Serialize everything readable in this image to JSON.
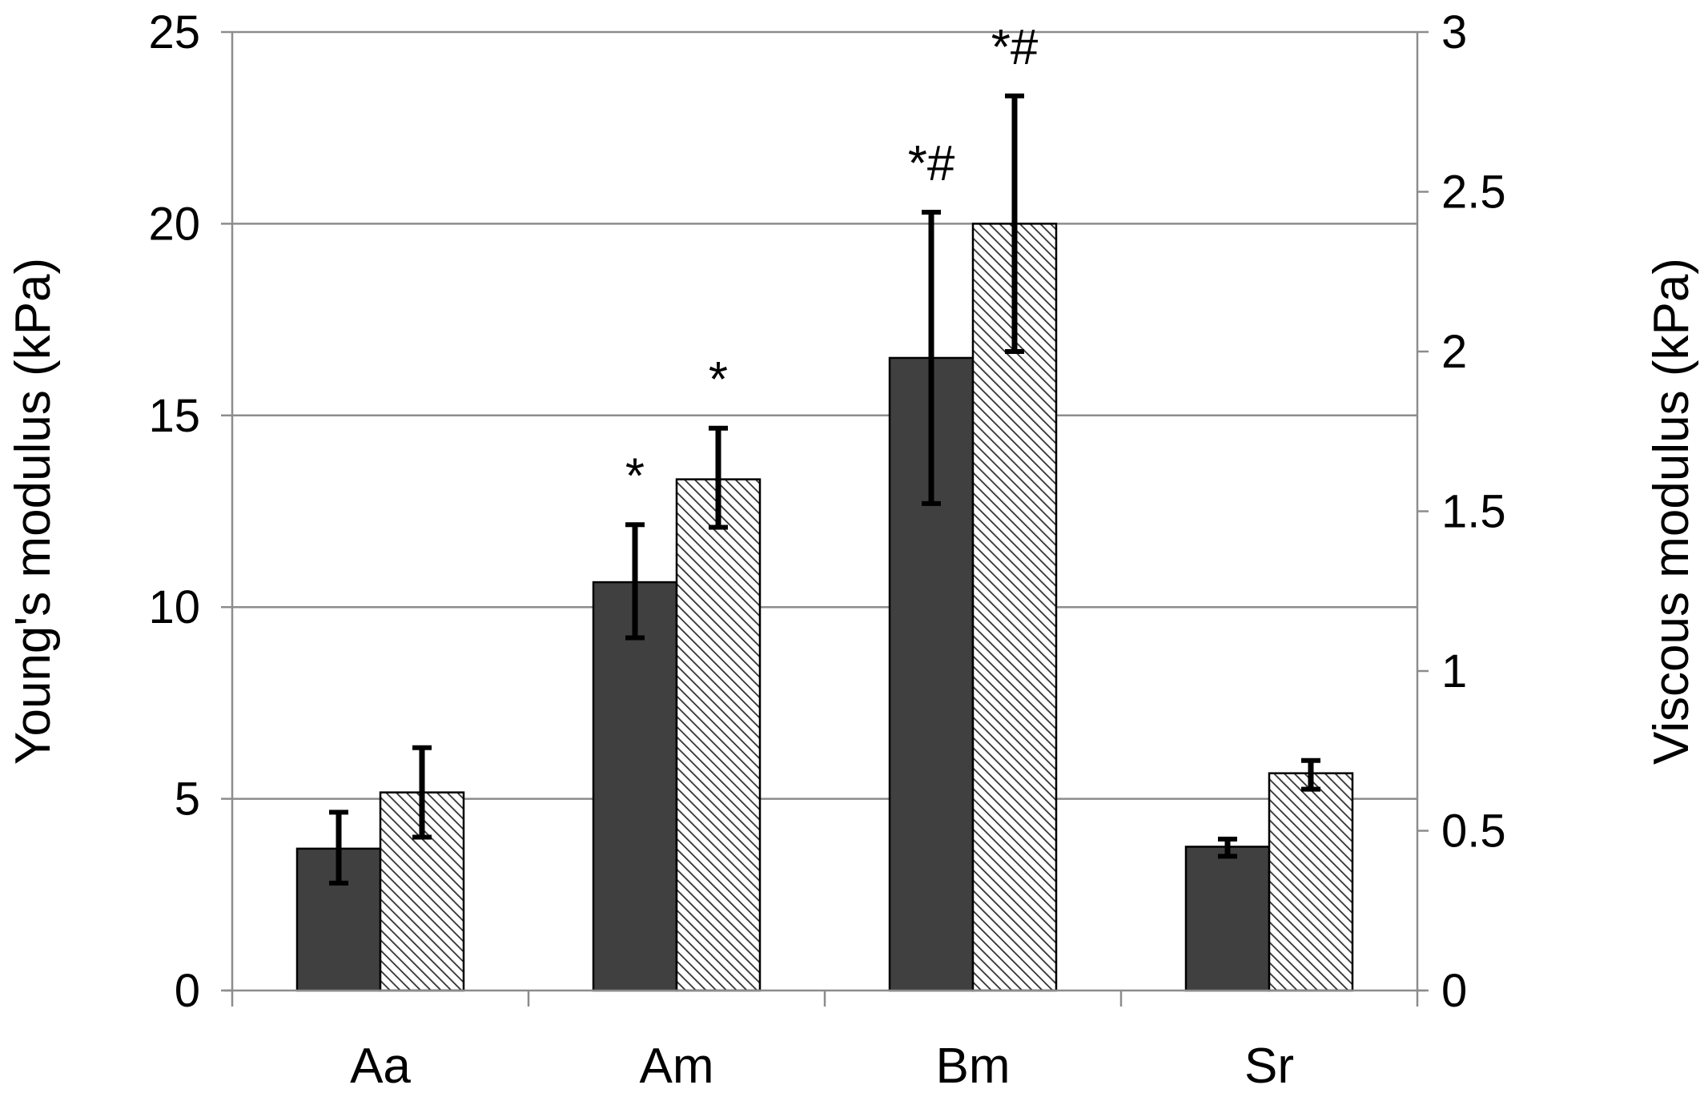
{
  "chart_data": {
    "type": "bar",
    "categories": [
      "Aa",
      "Am",
      "Bm",
      "Sr"
    ],
    "left_axis": {
      "label": "Young's modulus (kPa)",
      "ylim": [
        0,
        25
      ],
      "ticks": [
        "0",
        "5",
        "10",
        "15",
        "20",
        "25"
      ],
      "tick_values": [
        0,
        5,
        10,
        15,
        20,
        25
      ]
    },
    "right_axis": {
      "label": "Viscous modulus (kPa)",
      "ylim": [
        0,
        3
      ],
      "ticks": [
        "0",
        "0.5",
        "1",
        "1.5",
        "2",
        "2.5",
        "3"
      ],
      "tick_values": [
        0,
        0.5,
        1,
        1.5,
        2,
        2.5,
        3
      ]
    },
    "series": [
      {
        "axis": "left",
        "fill": "solid",
        "color": "#404040",
        "values": [
          3.7,
          10.65,
          16.5,
          3.75
        ],
        "error_low": [
          2.8,
          9.2,
          12.7,
          3.5
        ],
        "error_high": [
          4.65,
          12.15,
          20.3,
          3.95
        ],
        "annotations": [
          "",
          "*",
          "*#",
          ""
        ]
      },
      {
        "axis": "right",
        "fill": "hatched",
        "color": "#ffffff",
        "values": [
          0.62,
          1.6,
          2.4,
          0.68
        ],
        "error_low": [
          0.48,
          1.45,
          2.0,
          0.63
        ],
        "error_high": [
          0.76,
          1.76,
          2.8,
          0.72
        ],
        "annotations": [
          "",
          "*",
          "*#",
          ""
        ]
      }
    ],
    "grid": true,
    "legend": "none"
  }
}
